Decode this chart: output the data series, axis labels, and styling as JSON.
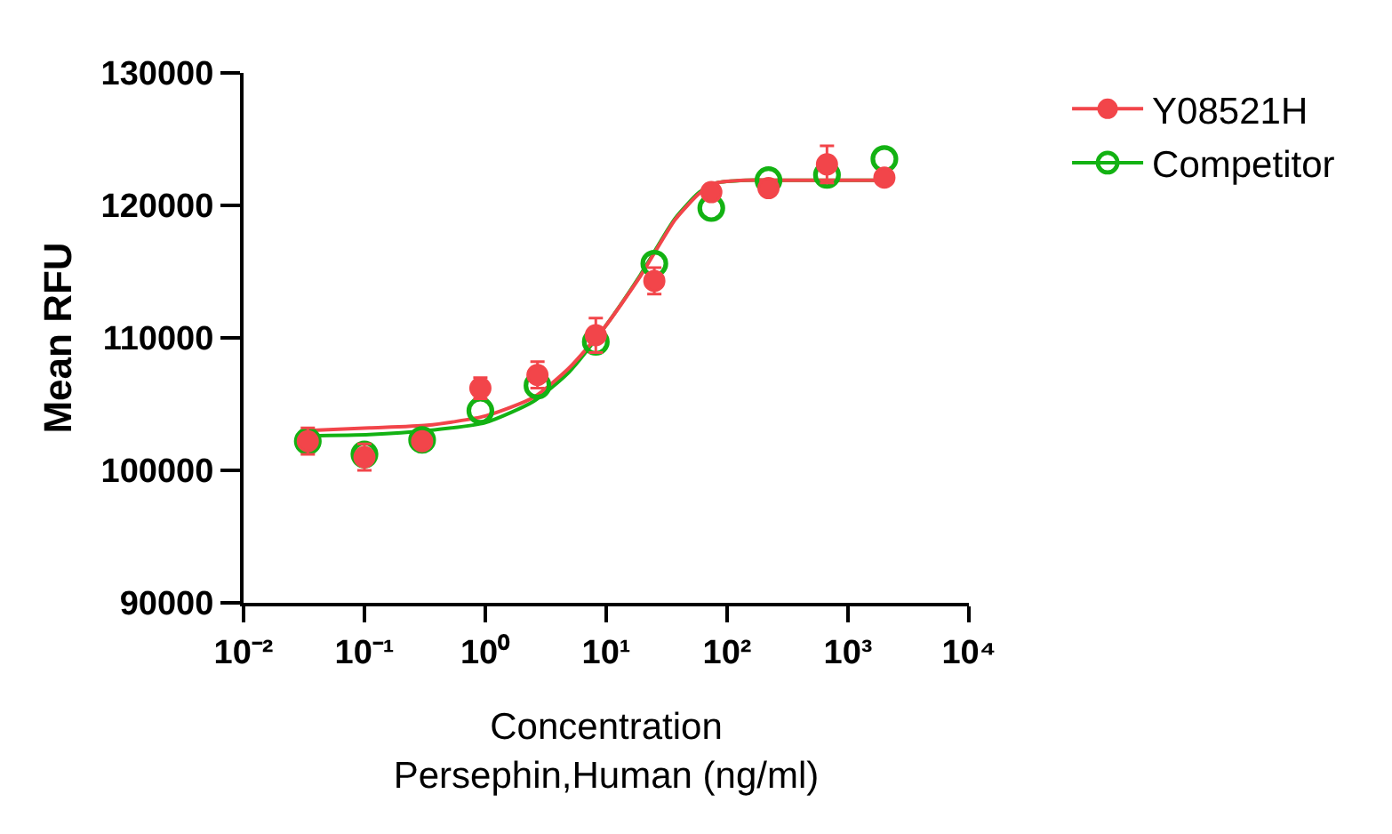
{
  "chart_data": {
    "type": "scatter",
    "xlabel": "Concentration\nPersephin,Human (ng/ml)",
    "ylabel": "Mean RFU",
    "log": "x",
    "xlim": [
      0.01,
      10000
    ],
    "xticks": [
      {
        "value": 0.01,
        "label": "10⁻²"
      },
      {
        "value": 0.1,
        "label": "10⁻¹"
      },
      {
        "value": 1,
        "label": "10⁰"
      },
      {
        "value": 10,
        "label": "10¹"
      },
      {
        "value": 100,
        "label": "10²"
      },
      {
        "value": 1000,
        "label": "10³"
      },
      {
        "value": 10000,
        "label": "10⁴"
      }
    ],
    "ylim": [
      90000,
      130000
    ],
    "yticks": [
      90000,
      100000,
      110000,
      120000,
      130000
    ],
    "grid": false,
    "legend": "top right",
    "marker": "circle",
    "x": [
      0.034,
      0.1,
      0.3,
      0.91,
      2.7,
      8.2,
      25,
      74,
      220,
      670,
      2000
    ],
    "series": [
      {
        "name": "Y08521H",
        "color": "#f2454a",
        "values": [
          102200,
          101000,
          102200,
          106200,
          107200,
          110200,
          114300,
          121000,
          121300,
          123100,
          122100
        ],
        "errors": [
          1000,
          1000,
          null,
          800,
          1000,
          1300,
          1000,
          null,
          null,
          1400,
          null
        ]
      },
      {
        "name": "Competitor",
        "color": "#13b213",
        "values": [
          102200,
          101200,
          102300,
          104500,
          106400,
          109700,
          115600,
          119800,
          121900,
          122300,
          123500
        ]
      },
      {
        "type": "line",
        "marker": "none",
        "line_style": "solid",
        "color": "#f2454a",
        "x": [
          0.034,
          0.11,
          0.33,
          1.0,
          2.5,
          4.9,
          9.7,
          19,
          37,
          59,
          82,
          145,
          286,
          2000
        ],
        "values": [
          103000,
          103200,
          103400,
          104100,
          105500,
          107700,
          110800,
          114600,
          118900,
          120900,
          121700,
          121900,
          121900,
          121900
        ]
      },
      {
        "type": "line",
        "marker": "none",
        "line_style": "solid",
        "color": "#13b213",
        "x": [
          0.034,
          0.11,
          0.33,
          1.0,
          2.5,
          4.9,
          9.7,
          19,
          37,
          59,
          82,
          145,
          286,
          2000
        ],
        "values": [
          102600,
          102700,
          103000,
          103600,
          105200,
          107400,
          110800,
          114700,
          119000,
          121000,
          121700,
          121900,
          121900,
          121900
        ]
      }
    ]
  }
}
